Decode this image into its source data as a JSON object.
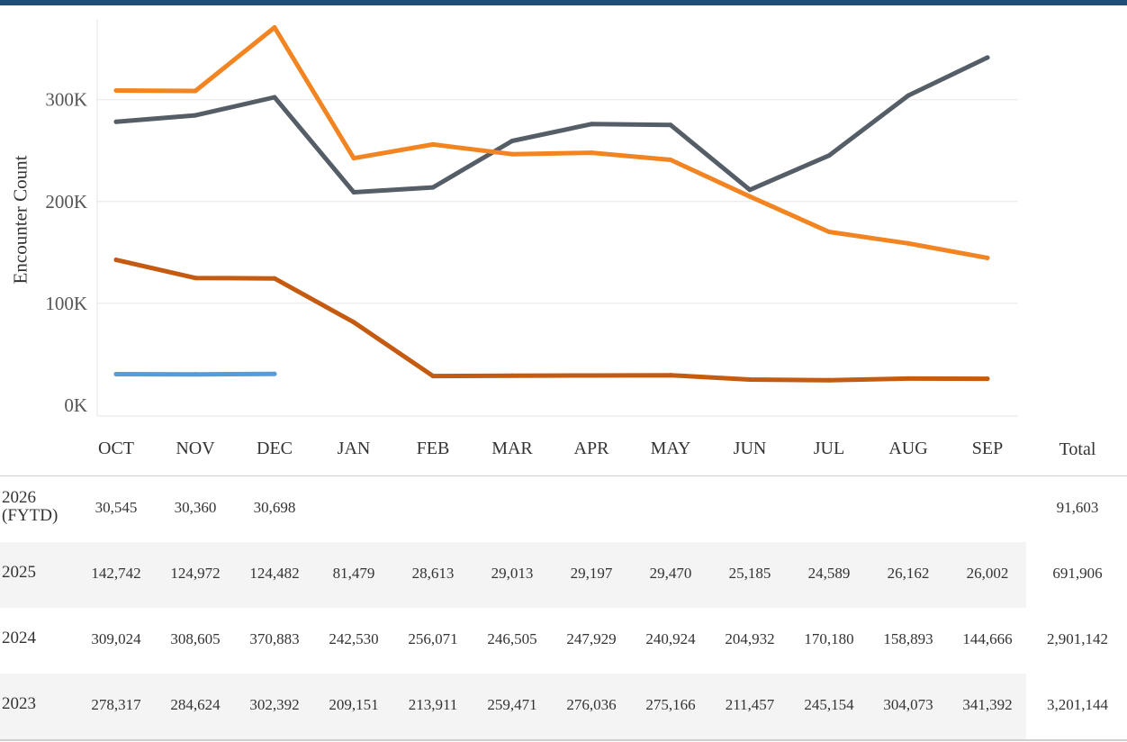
{
  "chart_data": {
    "type": "line",
    "ylabel": "Encounter Count",
    "ylim": [
      0,
      380000
    ],
    "yticks": [
      {
        "value": 0,
        "label": "0K"
      },
      {
        "value": 100000,
        "label": "100K"
      },
      {
        "value": 200000,
        "label": "200K"
      },
      {
        "value": 300000,
        "label": "300K"
      }
    ],
    "categories": [
      "OCT",
      "NOV",
      "DEC",
      "JAN",
      "FEB",
      "MAR",
      "APR",
      "MAY",
      "JUN",
      "JUL",
      "AUG",
      "SEP"
    ],
    "total_label": "Total",
    "series": [
      {
        "name": "2026\n(FYTD)",
        "color": "#5b9bd5",
        "values": [
          30545,
          30360,
          30698,
          null,
          null,
          null,
          null,
          null,
          null,
          null,
          null,
          null
        ],
        "display": [
          "30,545",
          "30,360",
          "30,698",
          "",
          "",
          "",
          "",
          "",
          "",
          "",
          "",
          ""
        ],
        "total": "91,603"
      },
      {
        "name": "2025",
        "color": "#c55a11",
        "values": [
          142742,
          124972,
          124482,
          81479,
          28613,
          29013,
          29197,
          29470,
          25185,
          24589,
          26162,
          26002
        ],
        "display": [
          "142,742",
          "124,972",
          "124,482",
          "81,479",
          "28,613",
          "29,013",
          "29,197",
          "29,470",
          "25,185",
          "24,589",
          "26,162",
          "26,002"
        ],
        "total": "691,906"
      },
      {
        "name": "2024",
        "color": "#f28522",
        "values": [
          309024,
          308605,
          370883,
          242530,
          256071,
          246505,
          247929,
          240924,
          204932,
          170180,
          158893,
          144666
        ],
        "display": [
          "309,024",
          "308,605",
          "370,883",
          "242,530",
          "256,071",
          "246,505",
          "247,929",
          "240,924",
          "204,932",
          "170,180",
          "158,893",
          "144,666"
        ],
        "total": "2,901,142"
      },
      {
        "name": "2023",
        "color": "#555d66",
        "values": [
          278317,
          284624,
          302392,
          209151,
          213911,
          259471,
          276036,
          275166,
          211457,
          245154,
          304073,
          341392
        ],
        "display": [
          "278,317",
          "284,624",
          "302,392",
          "209,151",
          "213,911",
          "259,471",
          "276,036",
          "275,166",
          "211,457",
          "245,154",
          "304,073",
          "341,392"
        ],
        "total": "3,201,144"
      }
    ]
  },
  "colors": {
    "header_bar": "#1f4e79",
    "grid": "#e6e6e6",
    "row_alt": "#f4f4f4"
  }
}
